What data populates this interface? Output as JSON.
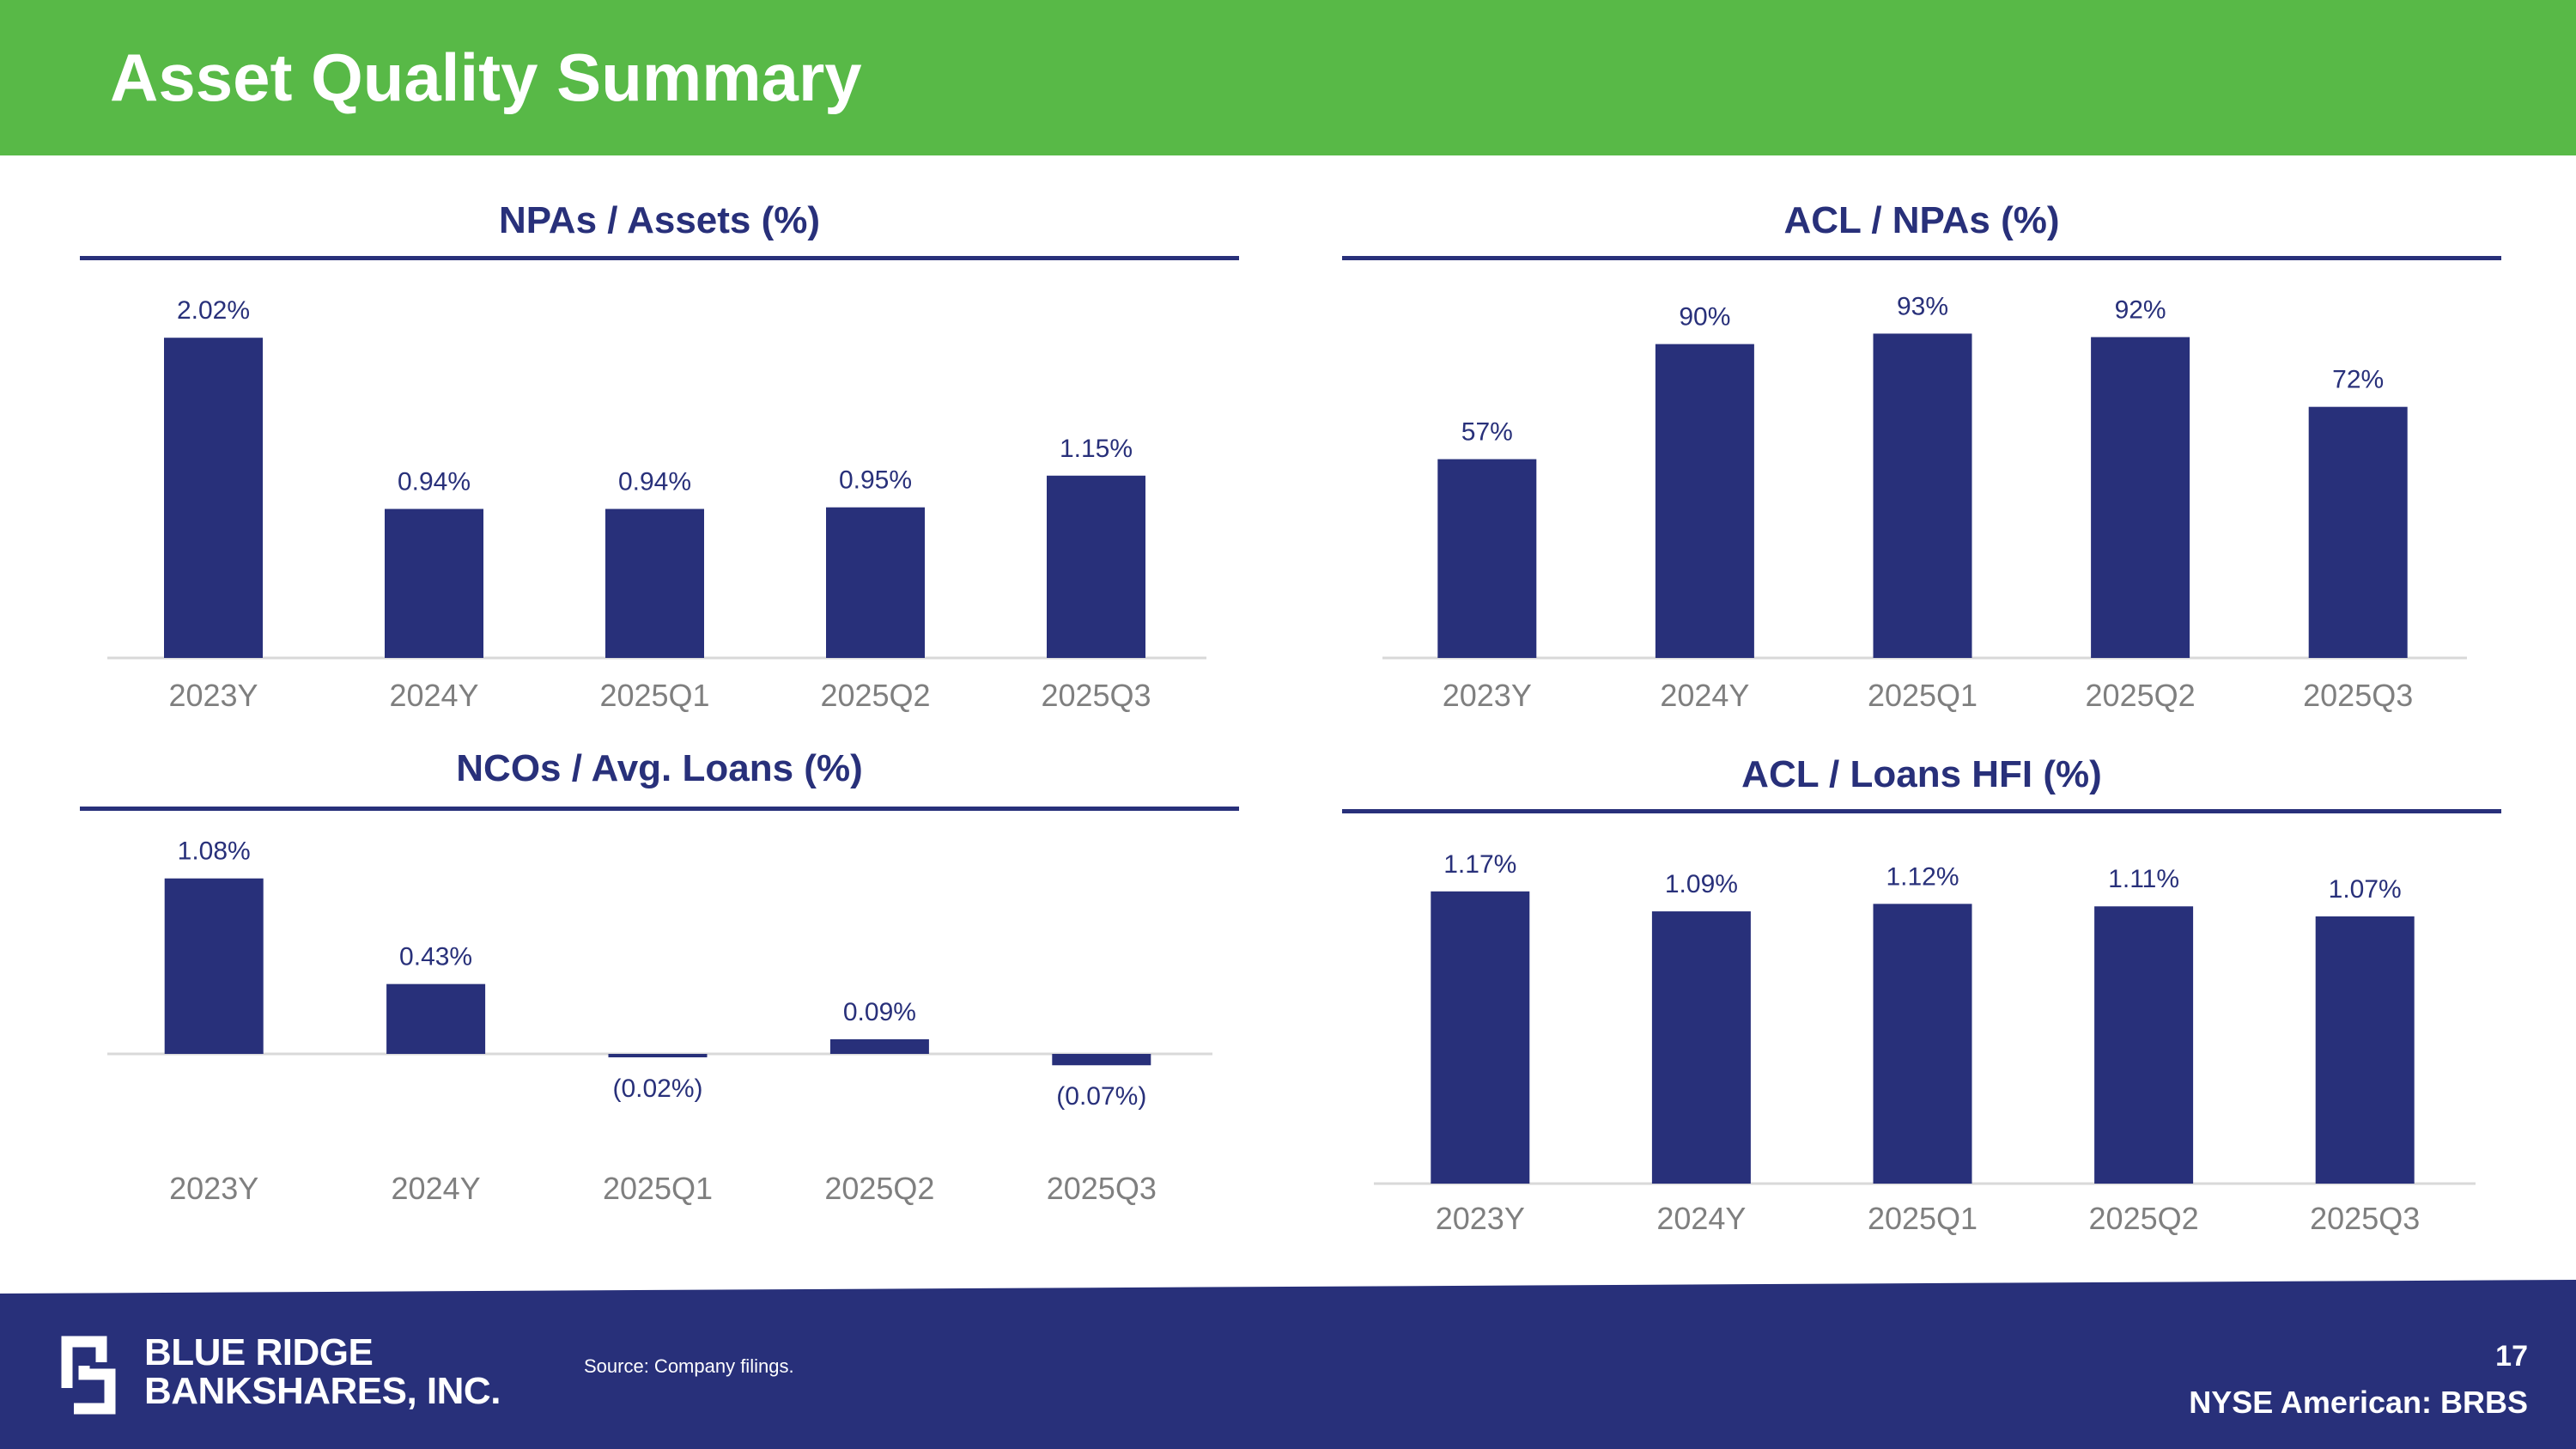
{
  "page": {
    "title": "Asset Quality Summary",
    "colors": {
      "header_bg": "#58b947",
      "accent": "#28307a",
      "bar": "#28307a",
      "tick": "#7f7f7f",
      "footer_bg": "#28307a"
    }
  },
  "footer": {
    "company_line1": "BLUE RIDGE",
    "company_line2": "BANKSHARES, INC.",
    "source": "Source: Company filings.",
    "page_number": "17",
    "ticker": "NYSE American: BRBS",
    "logo_icon": "blue-ridge-logo-icon"
  },
  "chart_data": [
    {
      "type": "bar",
      "title": "NPAs / Assets (%)",
      "categories": [
        "2023Y",
        "2024Y",
        "2025Q1",
        "2025Q2",
        "2025Q3"
      ],
      "values": [
        2.02,
        0.94,
        0.94,
        0.95,
        1.15
      ],
      "labels": [
        "2.02%",
        "0.94%",
        "0.94%",
        "0.95%",
        "1.15%"
      ],
      "ylim": [
        0,
        2.2
      ],
      "xlabel": "",
      "ylabel": ""
    },
    {
      "type": "bar",
      "title": "ACL / NPAs (%)",
      "categories": [
        "2023Y",
        "2024Y",
        "2025Q1",
        "2025Q2",
        "2025Q3"
      ],
      "values": [
        57,
        90,
        93,
        92,
        72
      ],
      "labels": [
        "57%",
        "90%",
        "93%",
        "92%",
        "72%"
      ],
      "ylim": [
        0,
        100
      ],
      "xlabel": "",
      "ylabel": ""
    },
    {
      "type": "bar",
      "title": "NCOs / Avg. Loans (%)",
      "categories": [
        "2023Y",
        "2024Y",
        "2025Q1",
        "2025Q2",
        "2025Q3"
      ],
      "values": [
        1.08,
        0.43,
        -0.02,
        0.09,
        -0.07
      ],
      "labels": [
        "1.08%",
        "0.43%",
        "(0.02%)",
        "0.09%",
        "(0.07%)"
      ],
      "ylim": [
        -0.2,
        1.2
      ],
      "xlabel": "",
      "ylabel": ""
    },
    {
      "type": "bar",
      "title": "ACL / Loans HFI (%)",
      "categories": [
        "2023Y",
        "2024Y",
        "2025Q1",
        "2025Q2",
        "2025Q3"
      ],
      "values": [
        1.17,
        1.09,
        1.12,
        1.11,
        1.07
      ],
      "labels": [
        "1.17%",
        "1.09%",
        "1.12%",
        "1.11%",
        "1.07%"
      ],
      "ylim": [
        0,
        1.3
      ],
      "xlabel": "",
      "ylabel": ""
    }
  ]
}
